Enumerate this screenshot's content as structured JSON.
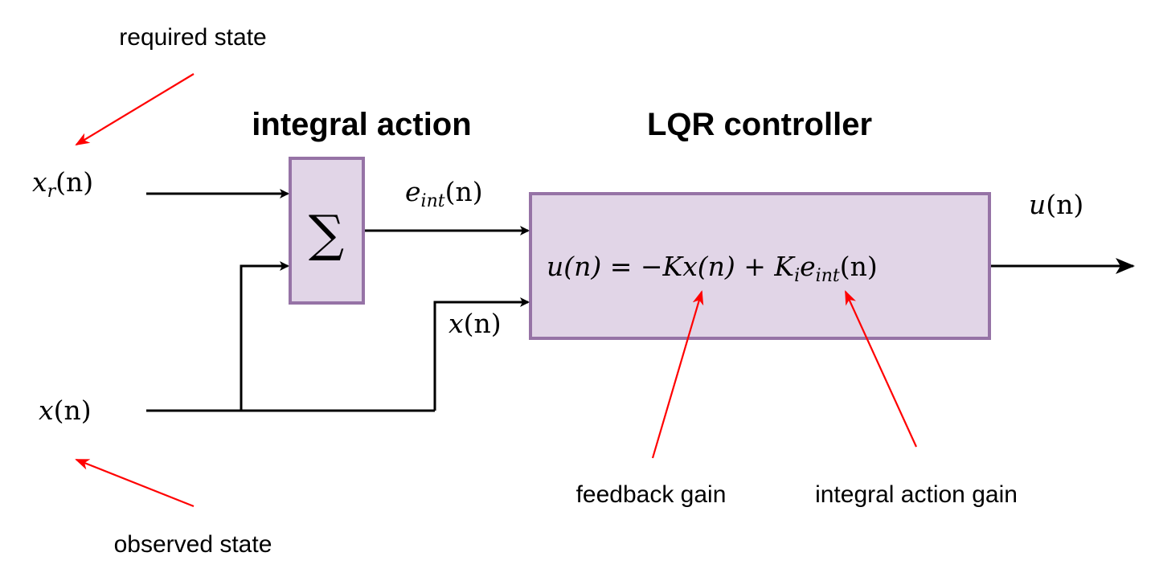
{
  "colors": {
    "block_fill": "#e1d5e7",
    "block_border": "#9673a6",
    "annotation_arrow": "#ff0000",
    "wire": "#000000"
  },
  "titles": {
    "integral_action": "integral action",
    "lqr_controller": "LQR controller"
  },
  "annotations": {
    "required_state": "required state",
    "observed_state": "observed state",
    "feedback_gain": "feedback gain",
    "integral_action_gain": "integral action gain"
  },
  "signals": {
    "xr": {
      "base": "x",
      "sub": "r",
      "rest": "(n)"
    },
    "x_in": {
      "base": "x",
      "rest": "(n)"
    },
    "x_mid": {
      "base": "x",
      "rest": "(n)"
    },
    "e_int": {
      "base": "e",
      "sub": "int",
      "rest": "(n)"
    },
    "u_out": {
      "base": "u",
      "rest": "(n)"
    }
  },
  "summation": {
    "symbol": "∑"
  },
  "control_law": {
    "lhs": "u(n) = −Kx(n) + K",
    "gain_sub": "i",
    "e": "e",
    "e_sub": "int",
    "tail": "(n)"
  }
}
